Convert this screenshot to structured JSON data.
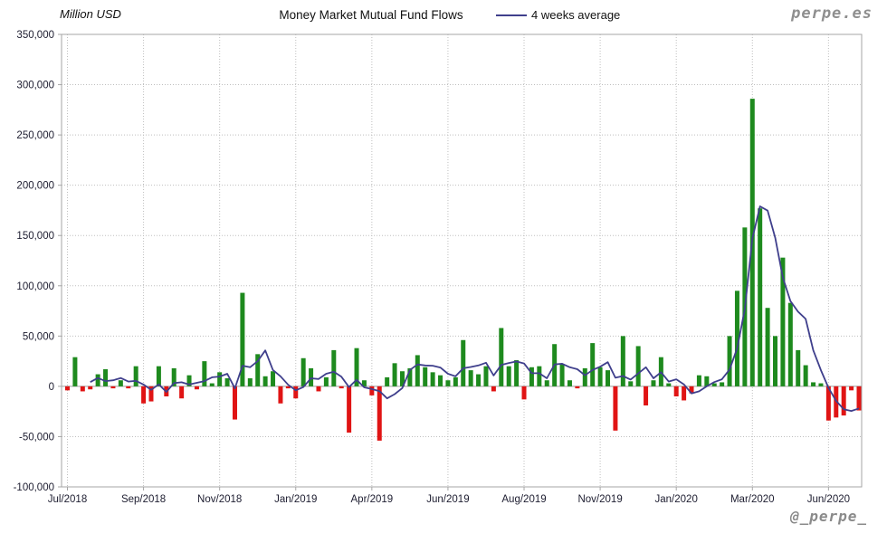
{
  "header": {
    "axis_title": "Million USD",
    "title": "Money Market Mutual Fund Flows",
    "legend_label": "4 weeks average",
    "site": "perpe.es"
  },
  "footer": {
    "handle": "@_perpe_"
  },
  "chart_data": {
    "type": "bar",
    "title": "Money Market Mutual Fund Flows",
    "unit_label": "Million USD",
    "frequency": "weekly",
    "grid": "dotted",
    "ylim": [
      -100000,
      350000
    ],
    "colors": {
      "positive_bar": "#1e8a1e",
      "negative_bar": "#e01414",
      "average_line": "#3f3f8c",
      "gridline": "#bfbfbf",
      "plot_border": "#a6a6a6",
      "zero_line": "#b0b0b0",
      "tick_text": "#1d1d30"
    },
    "series": [
      {
        "name": "Money Market Mutual Fund Flows",
        "type": "bar"
      },
      {
        "name": "4 weeks average",
        "type": "line",
        "definition": "trailing 4-week mean of weekly values"
      }
    ],
    "values": [
      -4000,
      29000,
      -5000,
      -3000,
      12000,
      17000,
      -2000,
      6000,
      -2000,
      20000,
      -17000,
      -15000,
      20000,
      -10000,
      18000,
      -12000,
      11000,
      -3000,
      25000,
      3000,
      14000,
      8000,
      -33000,
      93000,
      8000,
      32000,
      10000,
      15000,
      -17000,
      -2000,
      -12000,
      28000,
      18000,
      -5000,
      9000,
      36000,
      -2000,
      -46000,
      38000,
      6000,
      -9000,
      -54000,
      9000,
      23000,
      15000,
      18000,
      31000,
      19000,
      14000,
      11000,
      6000,
      9000,
      46000,
      16000,
      12000,
      20000,
      -5000,
      58000,
      20000,
      26000,
      -13000,
      19000,
      20000,
      6000,
      42000,
      22000,
      6000,
      -2000,
      18000,
      43000,
      19000,
      16000,
      -44000,
      50000,
      5000,
      40000,
      -19000,
      6000,
      29000,
      3000,
      -10000,
      -14000,
      -7000,
      11000,
      10000,
      3000,
      4000,
      50000,
      95000,
      158000,
      286000,
      177000,
      78000,
      50000,
      128000,
      83000,
      36000,
      21000,
      4000,
      3000,
      -34000,
      -31000,
      -29000,
      -4000,
      -24000
    ],
    "x_ticks": [
      {
        "index": 0,
        "label": "Jul/2018"
      },
      {
        "index": 10,
        "label": "Sep/2018"
      },
      {
        "index": 20,
        "label": "Nov/2018"
      },
      {
        "index": 30,
        "label": "Jan/2019"
      },
      {
        "index": 40,
        "label": "Apr/2019"
      },
      {
        "index": 50,
        "label": "Jun/2019"
      },
      {
        "index": 60,
        "label": "Aug/2019"
      },
      {
        "index": 70,
        "label": "Nov/2019"
      },
      {
        "index": 80,
        "label": "Jan/2020"
      },
      {
        "index": 90,
        "label": "Mar/2020"
      },
      {
        "index": 100,
        "label": "Jun/2020"
      }
    ],
    "y_ticks": [
      {
        "value": 350000,
        "label": "350,000"
      },
      {
        "value": 300000,
        "label": "300,000"
      },
      {
        "value": 250000,
        "label": "250,000"
      },
      {
        "value": 200000,
        "label": "200,000"
      },
      {
        "value": 150000,
        "label": "150,000"
      },
      {
        "value": 100000,
        "label": "100,000"
      },
      {
        "value": 50000,
        "label": "50,000"
      },
      {
        "value": 0,
        "label": "0"
      },
      {
        "value": -50000,
        "label": "-50,000"
      },
      {
        "value": -100000,
        "label": "-100,000"
      }
    ]
  }
}
